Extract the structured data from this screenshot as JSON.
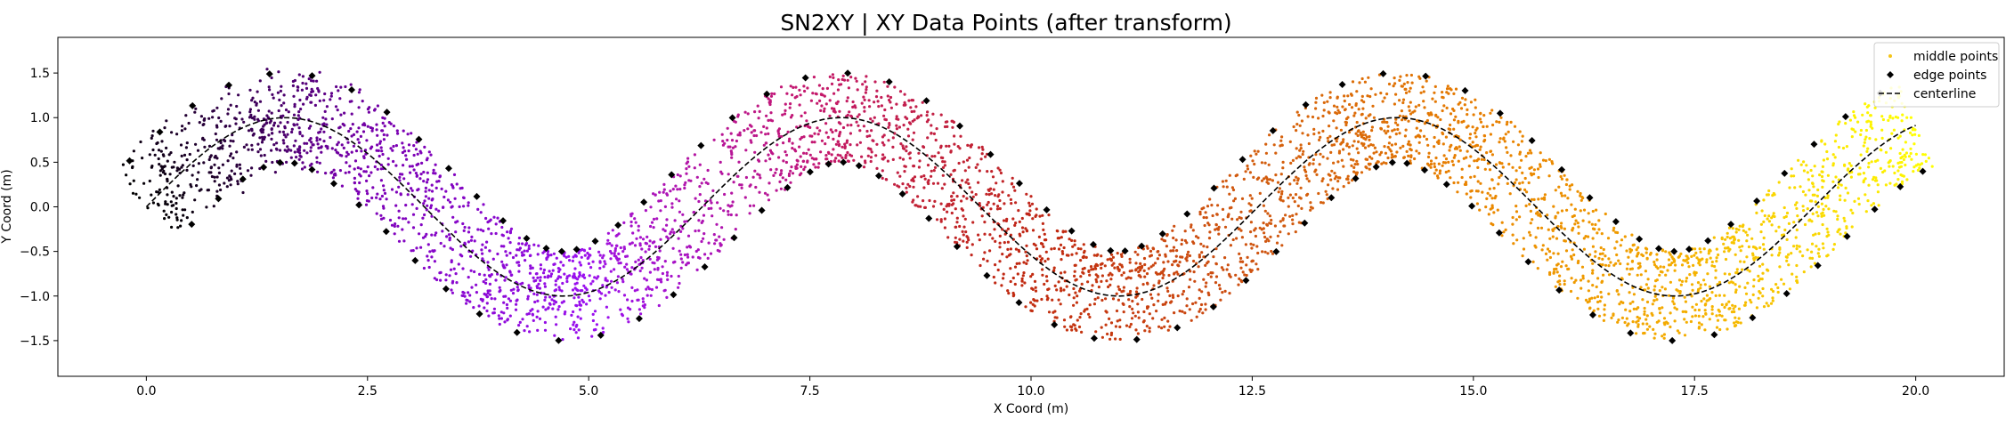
{
  "chart_data": {
    "type": "scatter",
    "title": "SN2XY | XY Data Points (after transform)",
    "xlabel": "X Coord (m)",
    "ylabel": "Y Coord (m)",
    "xlim": [
      -1.0,
      21.0
    ],
    "ylim": [
      -1.9,
      1.9
    ],
    "xticks": [
      0.0,
      2.5,
      5.0,
      7.5,
      10.0,
      12.5,
      15.0,
      17.5,
      20.0
    ],
    "xtick_labels": [
      "0.0",
      "2.5",
      "5.0",
      "7.5",
      "10.0",
      "12.5",
      "15.0",
      "17.5",
      "20.0"
    ],
    "yticks": [
      -1.5,
      -1.0,
      -0.5,
      0.0,
      0.5,
      1.0,
      1.5
    ],
    "ytick_labels": [
      "−1.5",
      "−1.0",
      "−0.5",
      "0.0",
      "0.5",
      "1.0",
      "1.5"
    ],
    "grid": false,
    "legend": {
      "placement": "top-right",
      "entries": [
        {
          "label": "middle points",
          "marker": "dot",
          "color": "#f5c518"
        },
        {
          "label": "edge points",
          "marker": "diamond",
          "color": "#000000"
        },
        {
          "label": "centerline",
          "marker": "dashed-line",
          "color": "#000000"
        }
      ]
    },
    "centerline": {
      "function": "y = sin(x)",
      "x_range": [
        0.0,
        20.0
      ],
      "color": "#000000",
      "style": "dashed"
    },
    "edge_points": {
      "offset_from_centerline": 0.5,
      "count_per_side": 62,
      "color": "#000000",
      "marker": "diamond"
    },
    "middle_points": {
      "count": 4800,
      "spread_half_width": 0.5,
      "colormap": "gnuplot",
      "colormap_stops": [
        "#000000",
        "#7a00b0",
        "#9a10f0",
        "#c41870",
        "#c02810",
        "#d05810",
        "#e88000",
        "#f5b000",
        "#ffff00"
      ],
      "description_note": "points colored by position along the centerline"
    }
  }
}
